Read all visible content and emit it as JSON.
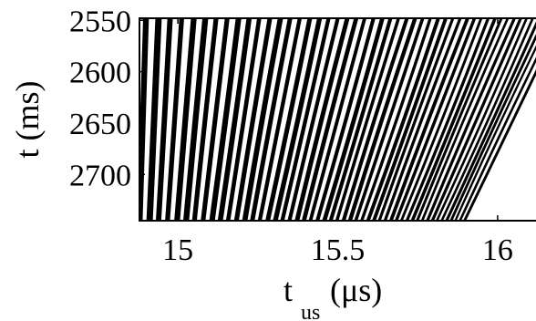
{
  "chart_data": {
    "type": "heatmap",
    "title": "",
    "xlabel": "t",
    "xlabel_subscript": "us",
    "xlabel_unit": "(μs)",
    "ylabel": "t (ms)",
    "xlim": [
      14.88,
      16.12
    ],
    "ylim": [
      2548,
      2745
    ],
    "y_reversed": true,
    "x_ticks": [
      15,
      15.5,
      16
    ],
    "x_tick_labels": [
      "15",
      "15.5",
      "16"
    ],
    "y_ticks": [
      2550,
      2600,
      2650,
      2700
    ],
    "y_tick_labels": [
      "2550",
      "2600",
      "2650",
      "2700"
    ],
    "colormap": [
      "#000000",
      "#ffffff"
    ],
    "grid": false,
    "legend": "none",
    "description_of_pattern": "interference fringes: nearly vertical stripes near 15 μs, increasingly slanted and denser toward 16 μs"
  }
}
